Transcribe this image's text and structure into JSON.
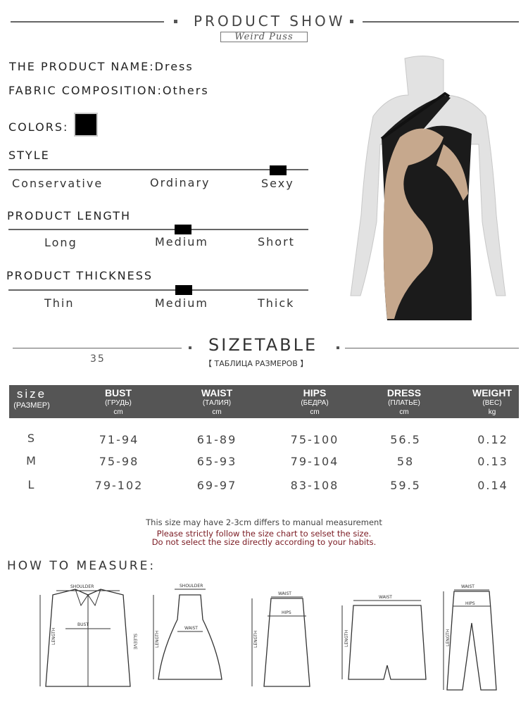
{
  "header": {
    "title": "PRODUCT SHOW",
    "brand": "Weird Puss"
  },
  "specs": {
    "name_label": "THE PRODUCT NAME:",
    "name_value": "Dress",
    "fabric_label": "FABRIC COMPOSITION:",
    "fabric_value": "Others",
    "colors_label": "COLORS:",
    "color_swatch": "#000000"
  },
  "scales": [
    {
      "title": "STYLE",
      "options": [
        "Conservative",
        "Ordinary",
        "Sexy"
      ],
      "selected": "Sexy"
    },
    {
      "title": "PRODUCT LENGTH",
      "options": [
        "Long",
        "Medium",
        "Short"
      ],
      "selected": "Medium"
    },
    {
      "title": "PRODUCT THICKNESS",
      "options": [
        "Thin",
        "Medium",
        "Thick"
      ],
      "selected": "Medium"
    }
  ],
  "sizetable": {
    "title": "SIZETABLE",
    "subtitle": "【 ТАБЛИЦА РАЗМЕРОВ 】",
    "number": "35",
    "columns": [
      {
        "name": "size",
        "ru": "(РАЗМЕР)",
        "unit": ""
      },
      {
        "name": "BUST",
        "ru": "(ГРУДЬ)",
        "unit": "cm"
      },
      {
        "name": "WAIST",
        "ru": "(ТАЛИЯ)",
        "unit": "cm"
      },
      {
        "name": "HIPS",
        "ru": "(БЕДРА)",
        "unit": "cm"
      },
      {
        "name": "DRESS",
        "ru": "(ПЛАТЬЕ)",
        "unit": "cm"
      },
      {
        "name": "WEIGHT",
        "ru": "(ВЕС)",
        "unit": "kg"
      }
    ],
    "rows": [
      [
        "S",
        "71-94",
        "61-89",
        "75-100",
        "56.5",
        "0.12"
      ],
      [
        "M",
        "75-98",
        "65-93",
        "79-104",
        "58",
        "0.13"
      ],
      [
        "L",
        "79-102",
        "69-97",
        "83-108",
        "59.5",
        "0.14"
      ]
    ],
    "header_color": "#555555"
  },
  "notes": {
    "line1": "This size may have 2-3cm differs to manual measurement",
    "line2": "Please strictly follow the size chart to selset the size.",
    "line3": "Do not select the size directly according to your habits.",
    "warning_color": "#7a1a22"
  },
  "measure": {
    "title": "HOW TO MEASURE:",
    "labels": {
      "shoulder": "SHOULDER",
      "bust": "BUST",
      "length": "LENGTH",
      "sleeve": "SLEEVE",
      "waist": "WAIST",
      "hips": "HIPS"
    }
  }
}
